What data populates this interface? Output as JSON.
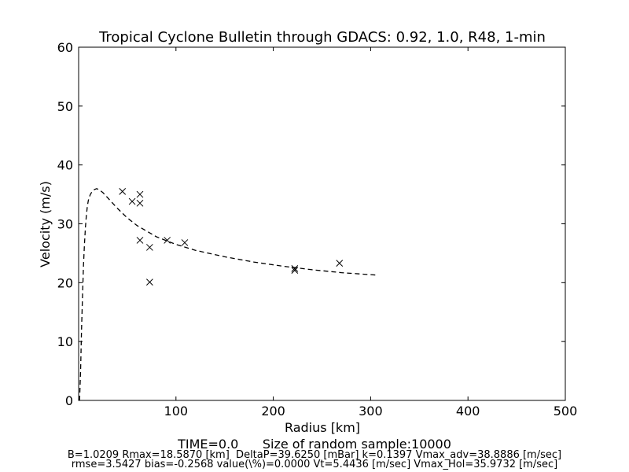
{
  "chart_data": {
    "type": "scatter",
    "title": "Tropical Cyclone Bulletin through GDACS: 0.92, 1.0, R48, 1-min",
    "xlabel": "Radius [km]",
    "ylabel": "Velocity (m/s)",
    "xlim": [
      0,
      500
    ],
    "ylim": [
      0,
      60
    ],
    "x_ticks": [
      100,
      200,
      300,
      400,
      500
    ],
    "y_ticks": [
      0,
      10,
      20,
      30,
      40,
      50,
      60
    ],
    "grid": false,
    "series": [
      {
        "marker": "x",
        "color": "#000000",
        "points": [
          [
            45,
            35.5
          ],
          [
            55,
            33.8
          ],
          [
            63,
            35.0
          ],
          [
            63,
            33.5
          ],
          [
            63,
            27.2
          ],
          [
            73,
            26.0
          ],
          [
            73,
            20.1
          ],
          [
            91,
            27.2
          ],
          [
            109,
            26.8
          ],
          [
            222,
            22.4
          ],
          [
            222,
            22.1
          ],
          [
            268,
            23.3
          ]
        ]
      },
      {
        "line_style": "dashed",
        "color": "#000000",
        "points": [
          [
            1,
            0
          ],
          [
            2,
            5
          ],
          [
            3,
            12
          ],
          [
            4,
            18
          ],
          [
            5,
            23
          ],
          [
            6,
            26.5
          ],
          [
            7,
            29.5
          ],
          [
            8,
            31.5
          ],
          [
            9,
            33
          ],
          [
            10,
            34
          ],
          [
            12,
            35
          ],
          [
            14,
            35.5
          ],
          [
            16,
            35.8
          ],
          [
            18.5,
            35.97
          ],
          [
            21,
            35.8
          ],
          [
            25,
            35.3
          ],
          [
            30,
            34.4
          ],
          [
            40,
            32.6
          ],
          [
            50,
            31.0
          ],
          [
            60,
            29.7
          ],
          [
            80,
            27.8
          ],
          [
            100,
            26.5
          ],
          [
            120,
            25.5
          ],
          [
            150,
            24.4
          ],
          [
            180,
            23.5
          ],
          [
            210,
            22.8
          ],
          [
            240,
            22.2
          ],
          [
            270,
            21.7
          ],
          [
            305,
            21.3
          ]
        ]
      }
    ]
  },
  "footer": {
    "line1": "TIME=0.0      Size of random sample:10000",
    "line2": "B=1.0209 Rmax=18.5870 [km]  DeltaP=39.6250 [mBar] k=0.1397 Vmax_adv=38.8886 [m/sec]",
    "line3": "rmse=3.5427 bias=-0.2568 value(\\%)=0.0000 Vt=5.4436 [m/sec] Vmax_Hol=35.9732 [m/sec]"
  }
}
